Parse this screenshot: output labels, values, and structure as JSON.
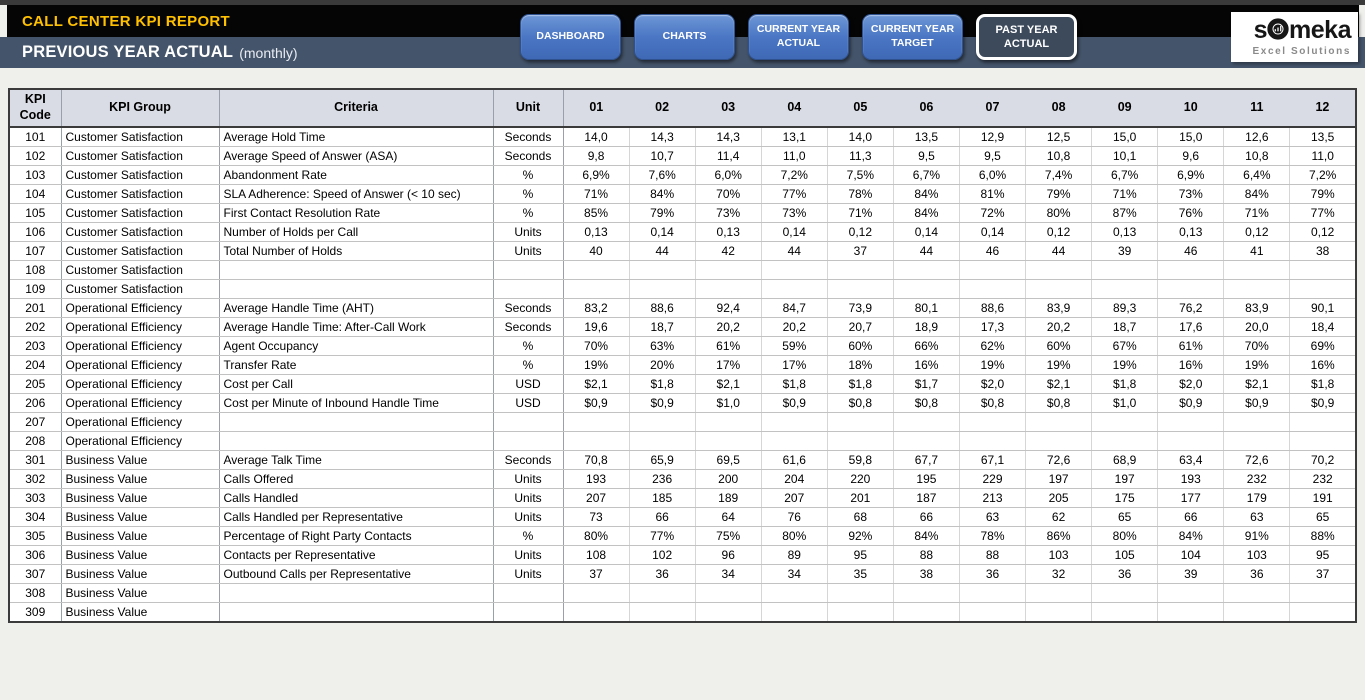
{
  "header": {
    "title": "CALL CENTER KPI REPORT",
    "subtitle": "PREVIOUS YEAR ACTUAL",
    "subtitle_note": "(monthly)",
    "nav": [
      {
        "label": "DASHBOARD",
        "active": false
      },
      {
        "label": "CHARTS",
        "active": false
      },
      {
        "label": "CURRENT YEAR ACTUAL",
        "active": false
      },
      {
        "label": "CURRENT YEAR TARGET",
        "active": false
      },
      {
        "label": "PAST YEAR ACTUAL",
        "active": true
      }
    ],
    "logo": {
      "brand_prefix": "s",
      "brand_suffix": "meka",
      "brand_full": "someka",
      "tagline": "Excel Solutions"
    }
  },
  "theme": {
    "title_yellow": "#FFC000",
    "band_black": "#050505",
    "band_slate": "#44546A",
    "button_blue": "#4472C4",
    "active_button": "#3C4A5C",
    "table_header_bg": "#D9DCE4"
  },
  "table": {
    "columns": [
      "KPI Code",
      "KPI Group",
      "Criteria",
      "Unit"
    ],
    "months": [
      "01",
      "02",
      "03",
      "04",
      "05",
      "06",
      "07",
      "08",
      "09",
      "10",
      "11",
      "12"
    ],
    "rows": [
      {
        "code": "101",
        "group": "Customer Satisfaction",
        "criteria": "Average Hold Time",
        "unit": "Seconds",
        "values": [
          "14,0",
          "14,3",
          "14,3",
          "13,1",
          "14,0",
          "13,5",
          "12,9",
          "12,5",
          "15,0",
          "15,0",
          "12,6",
          "13,5"
        ]
      },
      {
        "code": "102",
        "group": "Customer Satisfaction",
        "criteria": "Average Speed of Answer (ASA)",
        "unit": "Seconds",
        "values": [
          "9,8",
          "10,7",
          "11,4",
          "11,0",
          "11,3",
          "9,5",
          "9,5",
          "10,8",
          "10,1",
          "9,6",
          "10,8",
          "11,0"
        ]
      },
      {
        "code": "103",
        "group": "Customer Satisfaction",
        "criteria": "Abandonment Rate",
        "unit": "%",
        "values": [
          "6,9%",
          "7,6%",
          "6,0%",
          "7,2%",
          "7,5%",
          "6,7%",
          "6,0%",
          "7,4%",
          "6,7%",
          "6,9%",
          "6,4%",
          "7,2%"
        ]
      },
      {
        "code": "104",
        "group": "Customer Satisfaction",
        "criteria": "SLA Adherence: Speed of Answer (< 10 sec)",
        "unit": "%",
        "values": [
          "71%",
          "84%",
          "70%",
          "77%",
          "78%",
          "84%",
          "81%",
          "79%",
          "71%",
          "73%",
          "84%",
          "79%"
        ]
      },
      {
        "code": "105",
        "group": "Customer Satisfaction",
        "criteria": "First Contact Resolution Rate",
        "unit": "%",
        "values": [
          "85%",
          "79%",
          "73%",
          "73%",
          "71%",
          "84%",
          "72%",
          "80%",
          "87%",
          "76%",
          "71%",
          "77%"
        ]
      },
      {
        "code": "106",
        "group": "Customer Satisfaction",
        "criteria": "Number of Holds per Call",
        "unit": "Units",
        "values": [
          "0,13",
          "0,14",
          "0,13",
          "0,14",
          "0,12",
          "0,14",
          "0,14",
          "0,12",
          "0,13",
          "0,13",
          "0,12",
          "0,12"
        ]
      },
      {
        "code": "107",
        "group": "Customer Satisfaction",
        "criteria": "Total Number of Holds",
        "unit": "Units",
        "values": [
          "40",
          "44",
          "42",
          "44",
          "37",
          "44",
          "46",
          "44",
          "39",
          "46",
          "41",
          "38"
        ]
      },
      {
        "code": "108",
        "group": "Customer Satisfaction",
        "criteria": "",
        "unit": "",
        "values": [
          "",
          "",
          "",
          "",
          "",
          "",
          "",
          "",
          "",
          "",
          "",
          ""
        ]
      },
      {
        "code": "109",
        "group": "Customer Satisfaction",
        "criteria": "",
        "unit": "",
        "values": [
          "",
          "",
          "",
          "",
          "",
          "",
          "",
          "",
          "",
          "",
          "",
          ""
        ]
      },
      {
        "code": "201",
        "group": "Operational Efficiency",
        "criteria": "Average Handle Time (AHT)",
        "unit": "Seconds",
        "values": [
          "83,2",
          "88,6",
          "92,4",
          "84,7",
          "73,9",
          "80,1",
          "88,6",
          "83,9",
          "89,3",
          "76,2",
          "83,9",
          "90,1"
        ]
      },
      {
        "code": "202",
        "group": "Operational Efficiency",
        "criteria": "Average Handle Time: After-Call Work",
        "unit": "Seconds",
        "values": [
          "19,6",
          "18,7",
          "20,2",
          "20,2",
          "20,7",
          "18,9",
          "17,3",
          "20,2",
          "18,7",
          "17,6",
          "20,0",
          "18,4"
        ]
      },
      {
        "code": "203",
        "group": "Operational Efficiency",
        "criteria": "Agent Occupancy",
        "unit": "%",
        "values": [
          "70%",
          "63%",
          "61%",
          "59%",
          "60%",
          "66%",
          "62%",
          "60%",
          "67%",
          "61%",
          "70%",
          "69%"
        ]
      },
      {
        "code": "204",
        "group": "Operational Efficiency",
        "criteria": "Transfer Rate",
        "unit": "%",
        "values": [
          "19%",
          "20%",
          "17%",
          "17%",
          "18%",
          "16%",
          "19%",
          "19%",
          "19%",
          "16%",
          "19%",
          "16%"
        ]
      },
      {
        "code": "205",
        "group": "Operational Efficiency",
        "criteria": "Cost per Call",
        "unit": "USD",
        "values": [
          "$2,1",
          "$1,8",
          "$2,1",
          "$1,8",
          "$1,8",
          "$1,7",
          "$2,0",
          "$2,1",
          "$1,8",
          "$2,0",
          "$2,1",
          "$1,8"
        ]
      },
      {
        "code": "206",
        "group": "Operational Efficiency",
        "criteria": "Cost per Minute of Inbound Handle Time",
        "unit": "USD",
        "values": [
          "$0,9",
          "$0,9",
          "$1,0",
          "$0,9",
          "$0,8",
          "$0,8",
          "$0,8",
          "$0,8",
          "$1,0",
          "$0,9",
          "$0,9",
          "$0,9"
        ]
      },
      {
        "code": "207",
        "group": "Operational Efficiency",
        "criteria": "",
        "unit": "",
        "values": [
          "",
          "",
          "",
          "",
          "",
          "",
          "",
          "",
          "",
          "",
          "",
          ""
        ]
      },
      {
        "code": "208",
        "group": "Operational Efficiency",
        "criteria": "",
        "unit": "",
        "values": [
          "",
          "",
          "",
          "",
          "",
          "",
          "",
          "",
          "",
          "",
          "",
          ""
        ]
      },
      {
        "code": "301",
        "group": "Business Value",
        "criteria": "Average Talk Time",
        "unit": "Seconds",
        "values": [
          "70,8",
          "65,9",
          "69,5",
          "61,6",
          "59,8",
          "67,7",
          "67,1",
          "72,6",
          "68,9",
          "63,4",
          "72,6",
          "70,2"
        ]
      },
      {
        "code": "302",
        "group": "Business Value",
        "criteria": "Calls Offered",
        "unit": "Units",
        "values": [
          "193",
          "236",
          "200",
          "204",
          "220",
          "195",
          "229",
          "197",
          "197",
          "193",
          "232",
          "232"
        ]
      },
      {
        "code": "303",
        "group": "Business Value",
        "criteria": "Calls Handled",
        "unit": "Units",
        "values": [
          "207",
          "185",
          "189",
          "207",
          "201",
          "187",
          "213",
          "205",
          "175",
          "177",
          "179",
          "191"
        ]
      },
      {
        "code": "304",
        "group": "Business Value",
        "criteria": "Calls Handled per Representative",
        "unit": "Units",
        "values": [
          "73",
          "66",
          "64",
          "76",
          "68",
          "66",
          "63",
          "62",
          "65",
          "66",
          "63",
          "65"
        ]
      },
      {
        "code": "305",
        "group": "Business Value",
        "criteria": "Percentage of Right Party Contacts",
        "unit": "%",
        "values": [
          "80%",
          "77%",
          "75%",
          "80%",
          "92%",
          "84%",
          "78%",
          "86%",
          "80%",
          "84%",
          "91%",
          "88%"
        ]
      },
      {
        "code": "306",
        "group": "Business Value",
        "criteria": "Contacts per Representative",
        "unit": "Units",
        "values": [
          "108",
          "102",
          "96",
          "89",
          "95",
          "88",
          "88",
          "103",
          "105",
          "104",
          "103",
          "95"
        ]
      },
      {
        "code": "307",
        "group": "Business Value",
        "criteria": "Outbound Calls per Representative",
        "unit": "Units",
        "values": [
          "37",
          "36",
          "34",
          "34",
          "35",
          "38",
          "36",
          "32",
          "36",
          "39",
          "36",
          "37"
        ]
      },
      {
        "code": "308",
        "group": "Business Value",
        "criteria": "",
        "unit": "",
        "values": [
          "",
          "",
          "",
          "",
          "",
          "",
          "",
          "",
          "",
          "",
          "",
          ""
        ]
      },
      {
        "code": "309",
        "group": "Business Value",
        "criteria": "",
        "unit": "",
        "values": [
          "",
          "",
          "",
          "",
          "",
          "",
          "",
          "",
          "",
          "",
          "",
          ""
        ]
      }
    ]
  }
}
